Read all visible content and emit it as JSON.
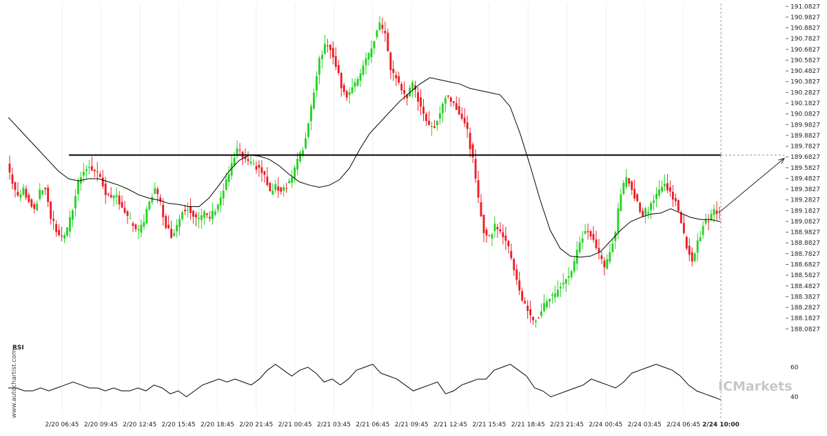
{
  "chart_data": [
    {
      "type": "candlestick",
      "y_ticks": [
        "191.0827",
        "190.9827",
        "190.8827",
        "190.7827",
        "190.6827",
        "190.5827",
        "190.4827",
        "190.3827",
        "190.2827",
        "190.1827",
        "190.0827",
        "189.9827",
        "189.8827",
        "189.7827",
        "189.6827",
        "189.5827",
        "189.4827",
        "189.3827",
        "189.2827",
        "189.1827",
        "189.0827",
        "188.9827",
        "188.8827",
        "188.7827",
        "188.6827",
        "188.5827",
        "188.4827",
        "188.3827",
        "188.2827",
        "188.1827",
        "188.0827"
      ],
      "ylim": [
        188.04,
        191.11
      ],
      "x_ticks": [
        "2/20 06:45",
        "2/20 09:45",
        "2/20 12:45",
        "2/20 15:45",
        "2/20 18:45",
        "2/20 21:45",
        "2/21 00:45",
        "2/21 03:45",
        "2/21 06:45",
        "2/21 09:45",
        "2/21 12:45",
        "2/21 15:45",
        "2/21 18:45",
        "2/23 21:45",
        "2/24 00:45",
        "2/24 03:45",
        "2/24 06:45",
        "2/24 10:00"
      ],
      "colors": {
        "up": "#22d322",
        "down": "#ee1b24",
        "ma": "#000000",
        "level": "#000000",
        "rsi": "#000000"
      },
      "resistance_level": 189.7,
      "close_path": [
        189.62,
        189.45,
        189.3,
        189.38,
        189.28,
        189.2,
        189.35,
        189.4,
        189.12,
        189.0,
        188.93,
        189.0,
        189.2,
        189.45,
        189.57,
        189.58,
        189.55,
        189.5,
        189.35,
        189.28,
        189.32,
        189.22,
        189.12,
        189.05,
        188.98,
        189.08,
        189.28,
        189.38,
        189.25,
        189.05,
        188.95,
        189.05,
        189.18,
        189.22,
        189.15,
        189.1,
        189.15,
        189.12,
        189.2,
        189.3,
        189.45,
        189.6,
        189.75,
        189.68,
        189.62,
        189.6,
        189.58,
        189.5,
        189.35,
        189.4,
        189.38,
        189.42,
        189.5,
        189.65,
        189.75,
        190.0,
        190.3,
        190.6,
        190.72,
        190.7,
        190.55,
        190.35,
        190.25,
        190.32,
        190.38,
        190.55,
        190.62,
        190.78,
        190.92,
        190.82,
        190.5,
        190.42,
        190.3,
        190.25,
        190.35,
        190.22,
        190.1,
        189.95,
        189.98,
        190.1,
        190.25,
        190.22,
        190.15,
        190.05,
        189.92,
        189.65,
        189.28,
        189.0,
        188.92,
        189.05,
        189.0,
        188.9,
        188.75,
        188.55,
        188.35,
        188.25,
        188.15,
        188.2,
        188.3,
        188.38,
        188.4,
        188.5,
        188.55,
        188.62,
        188.8,
        188.95,
        189.0,
        188.9,
        188.78,
        188.65,
        188.8,
        189.0,
        189.35,
        189.48,
        189.4,
        189.25,
        189.15,
        189.2,
        189.3,
        189.38,
        189.42,
        189.35,
        189.28,
        189.05,
        188.85,
        188.72,
        188.88,
        189.05,
        189.1,
        189.18,
        189.15
      ],
      "ma_path": [
        190.05,
        189.95,
        189.85,
        189.75,
        189.65,
        189.55,
        189.48,
        189.46,
        189.48,
        189.48,
        189.45,
        189.42,
        189.38,
        189.33,
        189.3,
        189.28,
        189.25,
        189.24,
        189.22,
        189.22,
        189.3,
        189.42,
        189.55,
        189.65,
        189.7,
        189.69,
        189.66,
        189.6,
        189.52,
        189.45,
        189.42,
        189.4,
        189.42,
        189.47,
        189.58,
        189.75,
        189.9,
        190.0,
        190.1,
        190.2,
        190.28,
        190.36,
        190.42,
        190.4,
        190.38,
        190.36,
        190.32,
        190.3,
        190.28,
        190.26,
        190.15,
        189.9,
        189.6,
        189.28,
        189.0,
        188.83,
        188.76,
        188.75,
        188.76,
        188.8,
        188.9,
        189.0,
        189.08,
        189.12,
        189.15,
        189.16,
        189.2,
        189.16,
        189.12,
        189.1,
        189.1,
        189.08
      ],
      "forecast": {
        "from": 189.18,
        "to": 189.67
      },
      "rsi": {
        "title": "RSI",
        "y_ticks": [
          "60",
          "40"
        ],
        "values": [
          46,
          46,
          44,
          44,
          46,
          44,
          46,
          48,
          50,
          48,
          46,
          46,
          44,
          46,
          44,
          44,
          46,
          44,
          48,
          46,
          42,
          44,
          40,
          44,
          48,
          50,
          52,
          50,
          52,
          50,
          48,
          52,
          58,
          62,
          58,
          54,
          58,
          60,
          56,
          50,
          52,
          48,
          52,
          58,
          60,
          62,
          56,
          54,
          52,
          48,
          44,
          46,
          48,
          50,
          42,
          44,
          48,
          50,
          52,
          52,
          58,
          60,
          62,
          58,
          54,
          46,
          44,
          40,
          42,
          44,
          46,
          48,
          52,
          50,
          48,
          46,
          50,
          56,
          58,
          60,
          62,
          60,
          58,
          54,
          48,
          44,
          42,
          40,
          38
        ]
      },
      "brand": "ICMarkets",
      "watermark": "www.autochartist.com"
    }
  ]
}
